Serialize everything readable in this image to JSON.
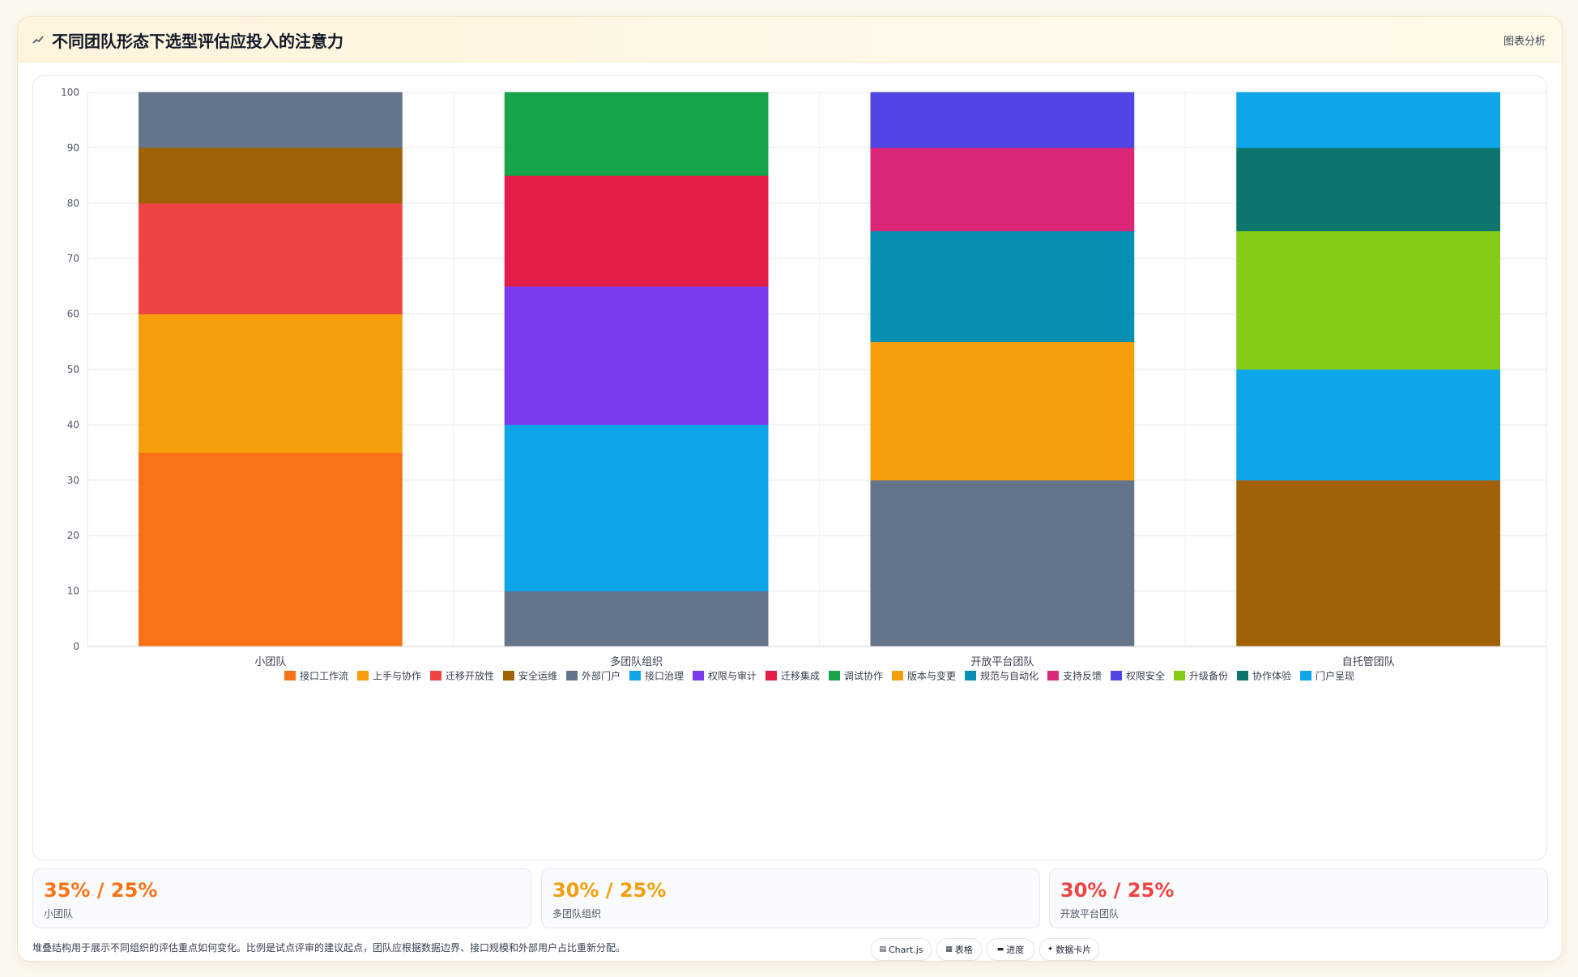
{
  "header": {
    "title": "不同团队形态下选型评估应投入的注意力",
    "right_label": "图表分析",
    "icon": "chart-icon"
  },
  "chart_data": {
    "type": "bar",
    "stacked": true,
    "categories": [
      "小团队",
      "多团队组织",
      "开放平台团队",
      "自托管团队"
    ],
    "ylim": [
      0,
      100
    ],
    "yticks": [
      0,
      10,
      20,
      30,
      40,
      50,
      60,
      70,
      80,
      90,
      100
    ],
    "grid": true,
    "legend_position": "bottom",
    "series": [
      {
        "name": "接口工作流",
        "color": "#f97316",
        "values": [
          35,
          0,
          0,
          0
        ]
      },
      {
        "name": "上手与协作",
        "color": "#f59e0b",
        "values": [
          25,
          0,
          0,
          0
        ]
      },
      {
        "name": "迁移开放性",
        "color": "#ef4444",
        "values": [
          20,
          0,
          0,
          0
        ]
      },
      {
        "name": "安全运维",
        "color": "#a16207",
        "values": [
          10,
          0,
          0,
          0
        ]
      },
      {
        "name": "外部门户",
        "color": "#64748b",
        "values": [
          10,
          10,
          0,
          0
        ]
      },
      {
        "name": "接口治理",
        "color": "#0ea5e9",
        "values": [
          0,
          30,
          0,
          0
        ]
      },
      {
        "name": "权限与审计",
        "color": "#7c3aed",
        "values": [
          0,
          25,
          0,
          0
        ]
      },
      {
        "name": "迁移集成",
        "color": "#e11d48",
        "values": [
          0,
          20,
          0,
          0
        ]
      },
      {
        "name": "调试协作",
        "color": "#16a34a",
        "values": [
          0,
          15,
          0,
          0
        ]
      },
      {
        "name": "版本与变更",
        "color": "#f59e0b",
        "values": [
          0,
          0,
          25,
          0
        ]
      },
      {
        "name": "规范与自动化",
        "color": "#0891b2",
        "values": [
          0,
          0,
          20,
          0
        ]
      },
      {
        "name": "支持反馈",
        "color": "#db2777",
        "values": [
          0,
          0,
          15,
          0
        ]
      },
      {
        "name": "权限安全",
        "color": "#4f46e5",
        "values": [
          0,
          0,
          10,
          0
        ]
      },
      {
        "name": "升级备份",
        "color": "#84cc16",
        "values": [
          0,
          0,
          0,
          25
        ]
      },
      {
        "name": "协作体验",
        "color": "#0f766e",
        "values": [
          0,
          0,
          0,
          15
        ]
      },
      {
        "name": "门户呈现",
        "color": "#0ea5e9",
        "values": [
          0,
          0,
          0,
          10
        ]
      }
    ],
    "segments": [
      [
        {
          "series": 0,
          "value": 35
        },
        {
          "series": 1,
          "value": 25
        },
        {
          "series": 2,
          "value": 20
        },
        {
          "series": 3,
          "value": 10
        },
        {
          "series": 4,
          "value": 10
        }
      ],
      [
        {
          "series": 4,
          "value": 10
        },
        {
          "series": 5,
          "value": 30
        },
        {
          "series": 6,
          "value": 25
        },
        {
          "series": 7,
          "value": 20
        },
        {
          "series": 8,
          "value": 15
        }
      ],
      [
        {
          "color": "#64748b",
          "value": 30
        },
        {
          "series": 9,
          "value": 25
        },
        {
          "series": 10,
          "value": 20
        },
        {
          "series": 11,
          "value": 15
        },
        {
          "series": 12,
          "value": 10
        }
      ],
      [
        {
          "color": "#a16207",
          "value": 30
        },
        {
          "color": "#0ea5e9",
          "value": 20
        },
        {
          "series": 13,
          "value": 25
        },
        {
          "series": 14,
          "value": 15
        },
        {
          "series": 15,
          "value": 10
        }
      ]
    ]
  },
  "stats": [
    {
      "value": "35% / 25%",
      "label": "小团队",
      "color": "#f97316"
    },
    {
      "value": "30% / 25%",
      "label": "多团队组织",
      "color": "#f59e0b"
    },
    {
      "value": "30% / 25%",
      "label": "开放平台团队",
      "color": "#ef4444"
    }
  ],
  "footnote": "堆叠结构用于展示不同组织的评估重点如何变化。比例是试点评审的建议起点，团队应根据数据边界、接口规模和外部用户占比重新分配。",
  "pills": [
    {
      "icon": "▤",
      "label": "Chart.js",
      "name": "chartjs-pill"
    },
    {
      "icon": "▦",
      "label": "表格",
      "name": "table-pill"
    },
    {
      "icon": "▬",
      "label": "进度",
      "name": "progress-pill"
    },
    {
      "icon": "✦",
      "label": "数据卡片",
      "name": "data-card-pill"
    }
  ]
}
